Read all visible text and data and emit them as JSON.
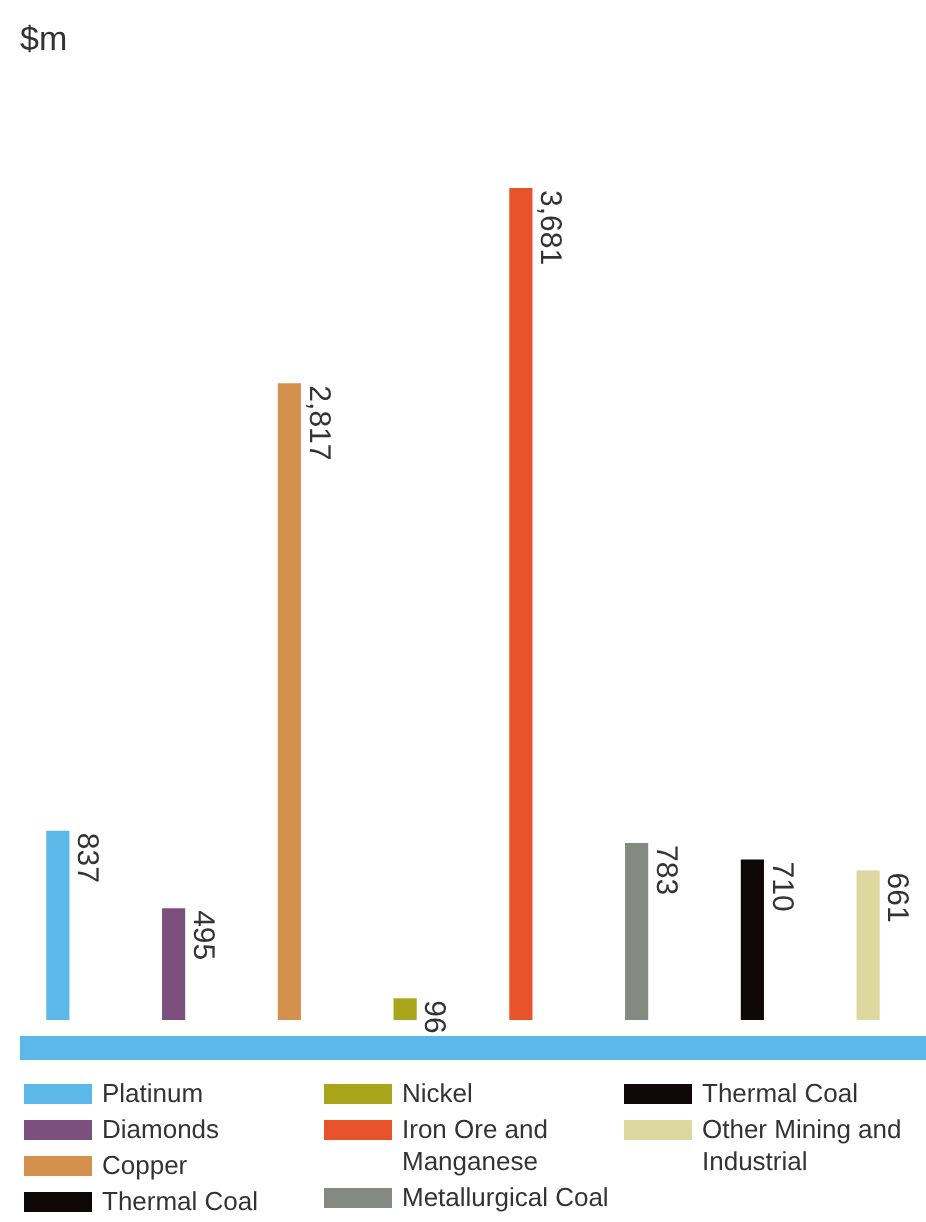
{
  "chart_data": {
    "type": "bar",
    "ylabel": "$m",
    "categories": [
      null,
      null,
      null,
      null,
      null,
      null,
      null,
      null
    ],
    "stacked": true,
    "legend": "bottom",
    "tick_labels": false,
    "series": [
      {
        "name": "Platinum",
        "color": "#5bb8e8",
        "values": [
          837,
          null,
          null,
          null,
          null,
          null,
          null,
          null
        ],
        "value_labels": [
          "837",
          null,
          null,
          null,
          null,
          null,
          null,
          null
        ]
      },
      {
        "name": "Diamonds",
        "color": "#7d4f7f",
        "values": [
          null,
          495,
          null,
          null,
          null,
          null,
          null,
          null
        ],
        "value_labels": [
          null,
          "495",
          null,
          null,
          null,
          null,
          null,
          null
        ]
      },
      {
        "name": "Copper",
        "color": "#d4914e",
        "values": [
          null,
          null,
          2817,
          null,
          null,
          null,
          null,
          null
        ],
        "value_labels": [
          null,
          null,
          "2,817",
          null,
          null,
          null,
          null,
          null
        ]
      },
      {
        "name": "Thermal Coal",
        "color": "#0d0708",
        "values": [
          null,
          null,
          null,
          null,
          null,
          null,
          null,
          null
        ]
      },
      {
        "name": "Nickel",
        "color": "#a8a51a",
        "values": [
          null,
          null,
          null,
          96,
          null,
          null,
          null,
          null
        ],
        "value_labels": [
          null,
          null,
          null,
          "96",
          null,
          null,
          null,
          null
        ]
      },
      {
        "name": "Iron Ore and Manganese",
        "color": "#e8532b",
        "values": [
          null,
          null,
          null,
          null,
          3681,
          null,
          null,
          null
        ],
        "value_labels": [
          null,
          null,
          null,
          null,
          "3,681",
          null,
          null,
          null
        ]
      },
      {
        "name": "Metallurgical Coal",
        "color": "#858a80",
        "values": [
          null,
          null,
          null,
          null,
          null,
          783,
          null,
          null
        ],
        "value_labels": [
          null,
          null,
          null,
          null,
          null,
          "783",
          null,
          null
        ]
      },
      {
        "name": "Thermal Coal",
        "color": "#0d0708",
        "values": [
          null,
          null,
          null,
          null,
          null,
          null,
          710,
          null
        ],
        "value_labels": [
          null,
          null,
          null,
          null,
          null,
          null,
          "710",
          null
        ]
      },
      {
        "name": "Other Mining and Industrial",
        "color": "#ddd8a0",
        "values": [
          null,
          null,
          null,
          null,
          null,
          null,
          null,
          661
        ],
        "value_labels": [
          null,
          null,
          null,
          null,
          null,
          null,
          null,
          "661"
        ]
      }
    ]
  }
}
